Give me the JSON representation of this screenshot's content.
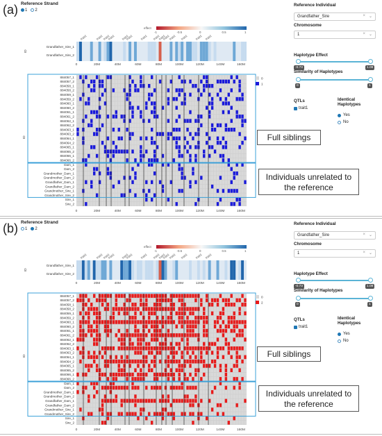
{
  "panels": [
    {
      "label": "(a)",
      "title": "Reference Strand",
      "strand_opts": [
        "1",
        "2"
      ],
      "selected_strand": "1",
      "highlight_color": "#1a1adb",
      "legend": [
        "0",
        "1"
      ],
      "callout_full": "Full siblings",
      "callout_unrel": "Individuals unrelated to the reference"
    },
    {
      "label": "(b)",
      "title": "Reference Strand",
      "strand_opts": [
        "1",
        "2"
      ],
      "selected_strand": "2",
      "highlight_color": "#e81b1b",
      "legend": [
        "0",
        "2"
      ],
      "callout_full": "Full siblings",
      "callout_unrel": "Individuals unrelated to the reference"
    }
  ],
  "sidebar": {
    "ref_label": "Reference Individual",
    "ref_value": "Grandfather_Sire",
    "chrom_label": "Chromosome",
    "chrom_value": "1",
    "effect_label": "Haplotype Effect",
    "effect_min": "-0.73",
    "effect_max": "1.08",
    "sim_label": "Similarity of Haplotypes",
    "sim_min": "0",
    "sim_max": "1",
    "qtl_label": "QTLs",
    "qtl_item": "trait1",
    "ident_label": "Identical Haplotypes",
    "ident_yes": "Yes",
    "ident_no": "No"
  },
  "effect_legend": {
    "title": "effect",
    "ticks": [
      "-1",
      "-0.5",
      "0",
      "0.5",
      "1"
    ]
  },
  "top_rows": [
    "Grandfather_Sire_1",
    "Grandfather_Sire_2"
  ],
  "top_ylabel": "ID",
  "main_ylabel": "ID",
  "rows": [
    "884057_1",
    "884057_2",
    "884058_1",
    "884058_2",
    "884059_1",
    "884059_2",
    "884060_1",
    "884060_2",
    "884061_1",
    "884061_2",
    "884062_1",
    "884062_2",
    "884063_1",
    "884063_2",
    "884064_1",
    "884064_2",
    "884065_1",
    "884065_2",
    "884066_1",
    "884066_2",
    "Dam_1",
    "Dam_2",
    "Grandmother_Dam_1",
    "Grandmother_Dam_2",
    "Grandfather_Dam_1",
    "Grandfather_Dam_2",
    "Grandmother_Sire_1",
    "Grandmother_Sire_2",
    "Sire_1",
    "Sire_2"
  ],
  "xticks": [
    "0",
    "20M",
    "40M",
    "60M",
    "80M",
    "100M",
    "120M",
    "140M",
    "160M"
  ],
  "qtl_labels": [
    "trait1",
    "trait1",
    "trait1",
    "trait1",
    "trait1",
    "trait1",
    "trait1",
    "trait1",
    "trait1",
    "trait1",
    "trait1",
    "trait1",
    "trait1",
    "trait1"
  ]
}
